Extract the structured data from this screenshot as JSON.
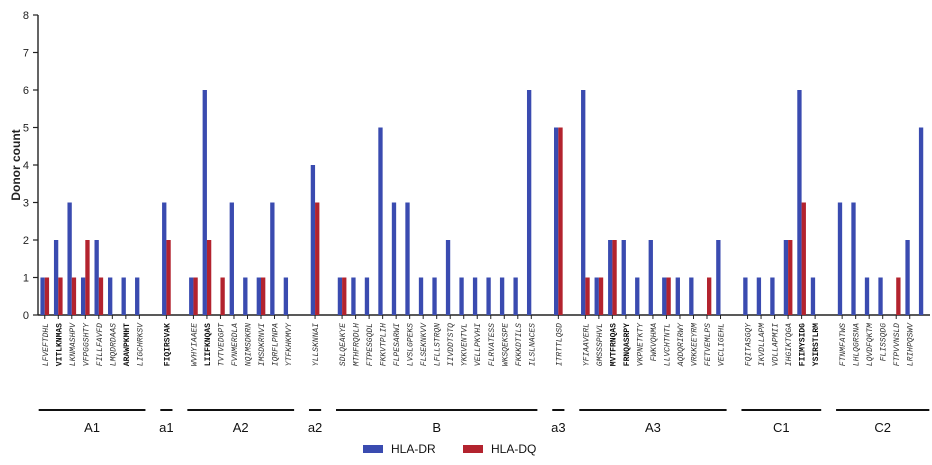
{
  "chart_data": {
    "type": "bar",
    "ylabel": "Donor count",
    "ylim": [
      0,
      8
    ],
    "yticks": [
      "0",
      "1",
      "2",
      "3",
      "4",
      "5",
      "6",
      "7",
      "8"
    ],
    "grid": false,
    "legend_position": "bottom-center",
    "series": [
      {
        "name": "HLA-DR",
        "color": "#3a4bb0"
      },
      {
        "name": "HLA-DQ",
        "color": "#b3232e"
      }
    ],
    "peptides": [
      {
        "label": "LFVEFTDHL",
        "bold": false,
        "dr": 1,
        "dq": 1
      },
      {
        "label": "VITLKNMAS",
        "bold": true,
        "dr": 2,
        "dq": 1
      },
      {
        "label": "LKNMASHPV",
        "bold": false,
        "dr": 3,
        "dq": 1
      },
      {
        "label": "VFPGGSHTY",
        "bold": false,
        "dr": 1,
        "dq": 2
      },
      {
        "label": "FILLFAVFD",
        "bold": false,
        "dr": 2,
        "dq": 1
      },
      {
        "label": "LMQDRDAAS",
        "bold": false,
        "dr": 1,
        "dq": 0
      },
      {
        "label": "ARAWPKMHT",
        "bold": true,
        "dr": 1,
        "dq": 0
      },
      {
        "label": "LIGCHRKSV",
        "bold": false,
        "dr": 1,
        "dq": 0
      },
      {
        "label": "",
        "bold": false,
        "dr": 0,
        "dq": 0
      },
      {
        "label": "FIQIRSVAK",
        "bold": true,
        "dr": 3,
        "dq": 2
      },
      {
        "label": "",
        "bold": false,
        "dr": 0,
        "dq": 0
      },
      {
        "label": "WVHYIAAEE",
        "bold": false,
        "dr": 1,
        "dq": 1
      },
      {
        "label": "LIIFKNQAS",
        "bold": true,
        "dr": 6,
        "dq": 2
      },
      {
        "label": "TVTVEDGPT",
        "bold": false,
        "dr": 0,
        "dq": 1
      },
      {
        "label": "FVNMERDLA",
        "bold": false,
        "dr": 3,
        "dq": 0
      },
      {
        "label": "NQIMSDKRN",
        "bold": false,
        "dr": 1,
        "dq": 0
      },
      {
        "label": "IMSDKRNVI",
        "bold": false,
        "dr": 1,
        "dq": 1
      },
      {
        "label": "IQRFLPNPA",
        "bold": false,
        "dr": 3,
        "dq": 0
      },
      {
        "label": "YTFKHKMVY",
        "bold": false,
        "dr": 1,
        "dq": 0
      },
      {
        "label": "",
        "bold": false,
        "dr": 0,
        "dq": 0
      },
      {
        "label": "YLLSKNNAI",
        "bold": false,
        "dr": 4,
        "dq": 3
      },
      {
        "label": "",
        "bold": false,
        "dr": 0,
        "dq": 0
      },
      {
        "label": "SDLQEAKYE",
        "bold": false,
        "dr": 1,
        "dq": 1
      },
      {
        "label": "MTHFRQDLH",
        "bold": false,
        "dr": 1,
        "dq": 0
      },
      {
        "label": "FTPESGQDL",
        "bold": false,
        "dr": 1,
        "dq": 0
      },
      {
        "label": "FKKVTPLIH",
        "bold": false,
        "dr": 5,
        "dq": 0
      },
      {
        "label": "FLPESARWI",
        "bold": false,
        "dr": 3,
        "dq": 0
      },
      {
        "label": "LVSLGPEKS",
        "bold": false,
        "dr": 3,
        "dq": 0
      },
      {
        "label": "FLSEKNKVV",
        "bold": false,
        "dr": 1,
        "dq": 0
      },
      {
        "label": "LFLLSTRQN",
        "bold": false,
        "dr": 1,
        "dq": 0
      },
      {
        "label": "IIVDDTSTQ",
        "bold": false,
        "dr": 2,
        "dq": 0
      },
      {
        "label": "YKKVENTVL",
        "bold": false,
        "dr": 1,
        "dq": 0
      },
      {
        "label": "VELLPKVHI",
        "bold": false,
        "dr": 1,
        "dq": 0
      },
      {
        "label": "FLRVATESS",
        "bold": false,
        "dr": 1,
        "dq": 0
      },
      {
        "label": "WKSQEKSPE",
        "bold": false,
        "dr": 1,
        "dq": 0
      },
      {
        "label": "FKKKDTILS",
        "bold": false,
        "dr": 1,
        "dq": 0
      },
      {
        "label": "ILSLNACES",
        "bold": false,
        "dr": 6,
        "dq": 0
      },
      {
        "label": "",
        "bold": false,
        "dr": 0,
        "dq": 0
      },
      {
        "label": "ITRTTLQSD",
        "bold": false,
        "dr": 5,
        "dq": 5
      },
      {
        "label": "",
        "bold": false,
        "dr": 0,
        "dq": 0
      },
      {
        "label": "YFIAAVERL",
        "bold": false,
        "dr": 6,
        "dq": 1
      },
      {
        "label": "GMSSSPHVL",
        "bold": false,
        "dr": 1,
        "dq": 1
      },
      {
        "label": "MVTFRNQAS",
        "bold": true,
        "dr": 2,
        "dq": 2
      },
      {
        "label": "FRNQASRPY",
        "bold": true,
        "dr": 2,
        "dq": 0
      },
      {
        "label": "VKPNETKTY",
        "bold": false,
        "dr": 1,
        "dq": 0
      },
      {
        "label": "FWKVQHMA",
        "bold": false,
        "dr": 2,
        "dq": 0
      },
      {
        "label": "LLVCHTNTL",
        "bold": false,
        "dr": 1,
        "dq": 1
      },
      {
        "label": "AQDQRIRWY",
        "bold": false,
        "dr": 1,
        "dq": 0
      },
      {
        "label": "VRKKEEYRM",
        "bold": false,
        "dr": 1,
        "dq": 0
      },
      {
        "label": "FETVEMLPS",
        "bold": false,
        "dr": 0,
        "dq": 1
      },
      {
        "label": "VECLIGEHL",
        "bold": false,
        "dr": 2,
        "dq": 0
      },
      {
        "label": "",
        "bold": false,
        "dr": 0,
        "dq": 0
      },
      {
        "label": "FQITASGQY",
        "bold": false,
        "dr": 1,
        "dq": 0
      },
      {
        "label": "IKVDLLAPM",
        "bold": false,
        "dr": 1,
        "dq": 0
      },
      {
        "label": "VDLLAPMII",
        "bold": false,
        "dr": 1,
        "dq": 0
      },
      {
        "label": "IHGIKTQGA",
        "bold": false,
        "dr": 2,
        "dq": 2
      },
      {
        "label": "FIIMYSIDG",
        "bold": true,
        "dr": 6,
        "dq": 3
      },
      {
        "label": "YSIRSTLRM",
        "bold": true,
        "dr": 1,
        "dq": 0
      },
      {
        "label": "",
        "bold": false,
        "dr": 0,
        "dq": 0
      },
      {
        "label": "FTNMFATWS",
        "bold": false,
        "dr": 3,
        "dq": 0
      },
      {
        "label": "LHLQGRSNA",
        "bold": false,
        "dr": 3,
        "dq": 0
      },
      {
        "label": "LQVDFQKTM",
        "bold": false,
        "dr": 1,
        "dq": 0
      },
      {
        "label": "FLISSQDG",
        "bold": false,
        "dr": 1,
        "dq": 0
      },
      {
        "label": "FTPVVNSLD",
        "bold": false,
        "dr": 0,
        "dq": 1
      },
      {
        "label": "LRIHPQSWV",
        "bold": false,
        "dr": 2,
        "dq": 0
      },
      {
        "label": "",
        "bold": false,
        "dr": 5,
        "dq": 0
      }
    ],
    "groups": [
      {
        "name": "A1",
        "from": 0,
        "to": 7
      },
      {
        "name": "a1",
        "from": 9,
        "to": 9
      },
      {
        "name": "A2",
        "from": 11,
        "to": 18
      },
      {
        "name": "a2",
        "from": 20,
        "to": 20
      },
      {
        "name": "B",
        "from": 22,
        "to": 36
      },
      {
        "name": "a3",
        "from": 38,
        "to": 38
      },
      {
        "name": "A3",
        "from": 40,
        "to": 50
      },
      {
        "name": "C1",
        "from": 52,
        "to": 57
      },
      {
        "name": "C2",
        "from": 59,
        "to": 65
      }
    ]
  }
}
